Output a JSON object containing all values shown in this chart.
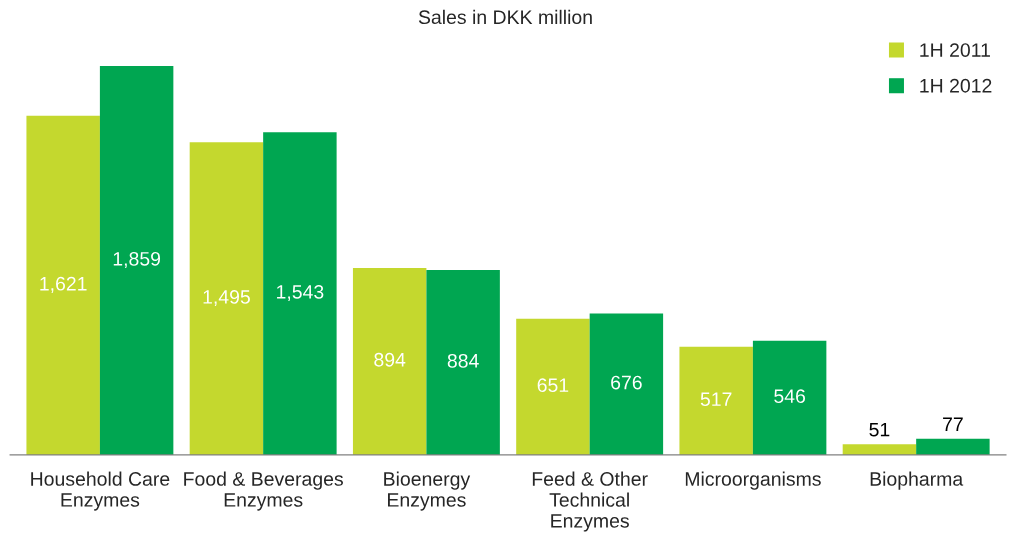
{
  "chart_data": {
    "type": "bar",
    "title": "Sales in DKK million",
    "categories": [
      "Household Care\nEnzymes",
      "Food & Beverages\nEnzymes",
      "Bioenergy\nEnzymes",
      "Feed & Other\nTechnical\nEnzymes",
      "Microorganisms",
      "Biopharma"
    ],
    "series": [
      {
        "name": "1H 2011",
        "color": "#c4d82e",
        "values": [
          1621,
          1495,
          894,
          651,
          517,
          51
        ],
        "value_labels": [
          "1,621",
          "1,495",
          "894",
          "651",
          "517",
          "51"
        ]
      },
      {
        "name": "1H 2012",
        "color": "#00a651",
        "values": [
          1859,
          1543,
          884,
          676,
          546,
          77
        ],
        "value_labels": [
          "1,859",
          "1,543",
          "884",
          "676",
          "546",
          "77"
        ]
      }
    ],
    "legend": "top right",
    "grid": false
  }
}
